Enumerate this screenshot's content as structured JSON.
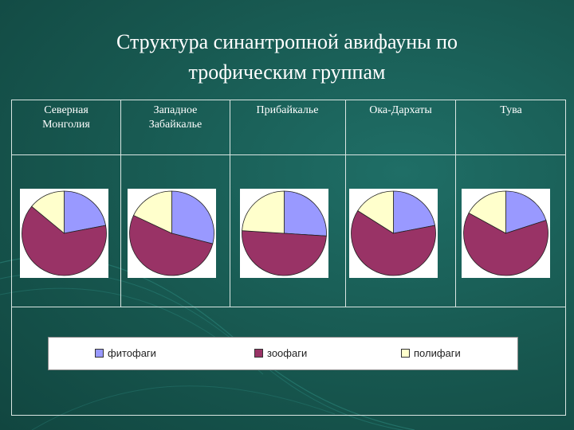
{
  "title_line1": "Структура синантропной авифауны по",
  "title_line2": "трофическим группам",
  "chart_data": {
    "type": "pie",
    "regions": [
      "Северная Монголия",
      "Западное Забайкалье",
      "Прибайкалье",
      "Ока-Дархаты",
      "Тува"
    ],
    "categories": [
      "фитофаги",
      "зоофаги",
      "полифаги"
    ],
    "colors": [
      "#9999ff",
      "#993366",
      "#ffffcc"
    ],
    "pies": [
      {
        "region": "Северная Монголия",
        "values": [
          22,
          64,
          14
        ]
      },
      {
        "region": "Западное Забайкалье",
        "values": [
          29,
          53,
          18
        ]
      },
      {
        "region": "Прибайкалье",
        "values": [
          26,
          50,
          24
        ]
      },
      {
        "region": "Ока-Дархаты",
        "values": [
          22,
          62,
          16
        ]
      },
      {
        "region": "Тува",
        "values": [
          20,
          63,
          17
        ]
      }
    ],
    "legend_position": "bottom"
  }
}
